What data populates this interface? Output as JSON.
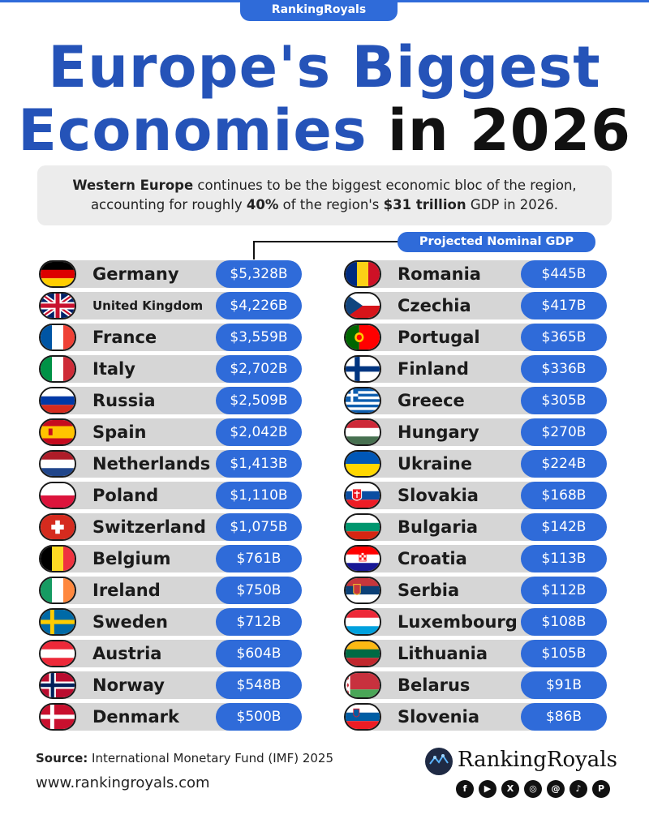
{
  "brand_tab": "RankingRoyals",
  "title": {
    "line1": "Europe's Biggest",
    "line2_blue": "Economies",
    "line2_black": "in 2026"
  },
  "subtitle": {
    "bold1": "Western Europe",
    "text1": " continues to be the biggest economic bloc of the region,",
    "text2": "accounting for roughly ",
    "bold2": "40%",
    "text3": " of the region's ",
    "bold3": "$31 trillion",
    "text4": " GDP in 2026."
  },
  "gdp_label": "Projected Nominal GDP",
  "chart_data": {
    "type": "table",
    "title": "Europe's Biggest Economies in 2026",
    "value_label": "Projected Nominal GDP",
    "left": [
      {
        "country": "Germany",
        "value": "$5,328B",
        "flag": "germany-flag-icon"
      },
      {
        "country": "United Kingdom",
        "value": "$4,226B",
        "flag": "uk-flag-icon"
      },
      {
        "country": "France",
        "value": "$3,559B",
        "flag": "france-flag-icon"
      },
      {
        "country": "Italy",
        "value": "$2,702B",
        "flag": "italy-flag-icon"
      },
      {
        "country": "Russia",
        "value": "$2,509B",
        "flag": "russia-flag-icon"
      },
      {
        "country": "Spain",
        "value": "$2,042B",
        "flag": "spain-flag-icon"
      },
      {
        "country": "Netherlands",
        "value": "$1,413B",
        "flag": "netherlands-flag-icon"
      },
      {
        "country": "Poland",
        "value": "$1,110B",
        "flag": "poland-flag-icon"
      },
      {
        "country": "Switzerland",
        "value": "$1,075B",
        "flag": "switzerland-flag-icon"
      },
      {
        "country": "Belgium",
        "value": "$761B",
        "flag": "belgium-flag-icon"
      },
      {
        "country": "Ireland",
        "value": "$750B",
        "flag": "ireland-flag-icon"
      },
      {
        "country": "Sweden",
        "value": "$712B",
        "flag": "sweden-flag-icon"
      },
      {
        "country": "Austria",
        "value": "$604B",
        "flag": "austria-flag-icon"
      },
      {
        "country": "Norway",
        "value": "$548B",
        "flag": "norway-flag-icon"
      },
      {
        "country": "Denmark",
        "value": "$500B",
        "flag": "denmark-flag-icon"
      }
    ],
    "right": [
      {
        "country": "Romania",
        "value": "$445B",
        "flag": "romania-flag-icon"
      },
      {
        "country": "Czechia",
        "value": "$417B",
        "flag": "czechia-flag-icon"
      },
      {
        "country": "Portugal",
        "value": "$365B",
        "flag": "portugal-flag-icon"
      },
      {
        "country": "Finland",
        "value": "$336B",
        "flag": "finland-flag-icon"
      },
      {
        "country": "Greece",
        "value": "$305B",
        "flag": "greece-flag-icon"
      },
      {
        "country": "Hungary",
        "value": "$270B",
        "flag": "hungary-flag-icon"
      },
      {
        "country": "Ukraine",
        "value": "$224B",
        "flag": "ukraine-flag-icon"
      },
      {
        "country": "Slovakia",
        "value": "$168B",
        "flag": "slovakia-flag-icon"
      },
      {
        "country": "Bulgaria",
        "value": "$142B",
        "flag": "bulgaria-flag-icon"
      },
      {
        "country": "Croatia",
        "value": "$113B",
        "flag": "croatia-flag-icon"
      },
      {
        "country": "Serbia",
        "value": "$112B",
        "flag": "serbia-flag-icon"
      },
      {
        "country": "Luxembourg",
        "value": "$108B",
        "flag": "luxembourg-flag-icon"
      },
      {
        "country": "Lithuania",
        "value": "$105B",
        "flag": "lithuania-flag-icon"
      },
      {
        "country": "Belarus",
        "value": "$91B",
        "flag": "belarus-flag-icon"
      },
      {
        "country": "Slovenia",
        "value": "$86B",
        "flag": "slovenia-flag-icon"
      }
    ]
  },
  "footer": {
    "source_label": "Source:",
    "source_text": " International Monetary Fund (IMF) 2025",
    "website": "www.rankingroyals.com",
    "logo_text": "RankingRoyals",
    "socials": [
      {
        "icon": "facebook-icon",
        "glyph": "f"
      },
      {
        "icon": "youtube-icon",
        "glyph": "▶"
      },
      {
        "icon": "x-icon",
        "glyph": "X"
      },
      {
        "icon": "instagram-icon",
        "glyph": "◎"
      },
      {
        "icon": "threads-icon",
        "glyph": "@"
      },
      {
        "icon": "tiktok-icon",
        "glyph": "♪"
      },
      {
        "icon": "pinterest-icon",
        "glyph": "P"
      }
    ]
  },
  "colors": {
    "accent": "#2f6bd9",
    "title_blue": "#2553b8",
    "row_bg": "#d6d6d6"
  }
}
